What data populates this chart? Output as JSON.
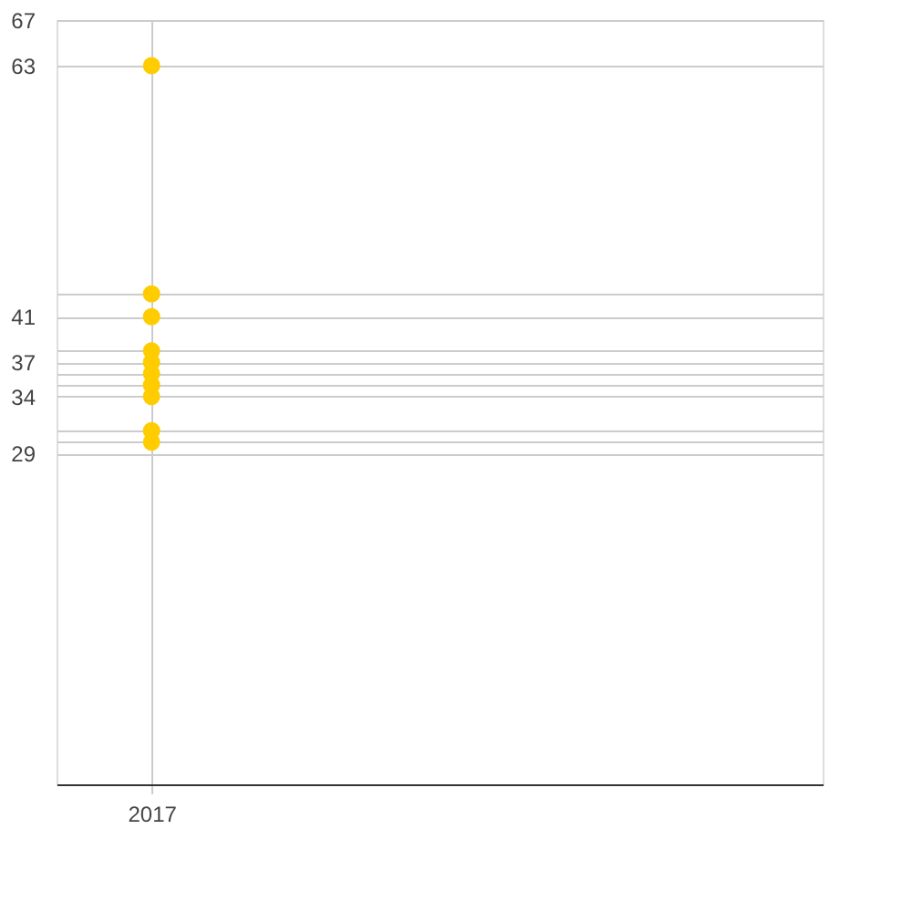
{
  "chart_data": {
    "type": "scatter",
    "categories": [
      "2017"
    ],
    "series": [
      {
        "color": "#ffcc00",
        "values": [
          63
        ]
      },
      {
        "color": "#ffcc00",
        "values": [
          43
        ]
      },
      {
        "color": "#ffcc00",
        "values": [
          41
        ]
      },
      {
        "color": "#ffcc00",
        "values": [
          38
        ]
      },
      {
        "color": "#ffcc00",
        "values": [
          37
        ]
      },
      {
        "color": "#ffcc00",
        "values": [
          36
        ]
      },
      {
        "color": "#ffcc00",
        "values": [
          35
        ]
      },
      {
        "color": "#ffcc00",
        "values": [
          34
        ]
      },
      {
        "color": "#ffcc00",
        "values": [
          31
        ]
      },
      {
        "color": "#ffcc00",
        "values": [
          30
        ]
      }
    ],
    "ylim": [
      0,
      67
    ],
    "yticks": [
      67,
      63,
      {
        "value": 43,
        "label": null
      },
      41,
      {
        "value": 38,
        "label": null
      },
      37,
      {
        "value": 36,
        "label": null
      },
      {
        "value": 35,
        "label": null
      },
      34,
      {
        "value": 31,
        "label": null
      },
      {
        "value": 30,
        "label": null
      },
      29
    ],
    "grid": true,
    "marker": "circle"
  }
}
